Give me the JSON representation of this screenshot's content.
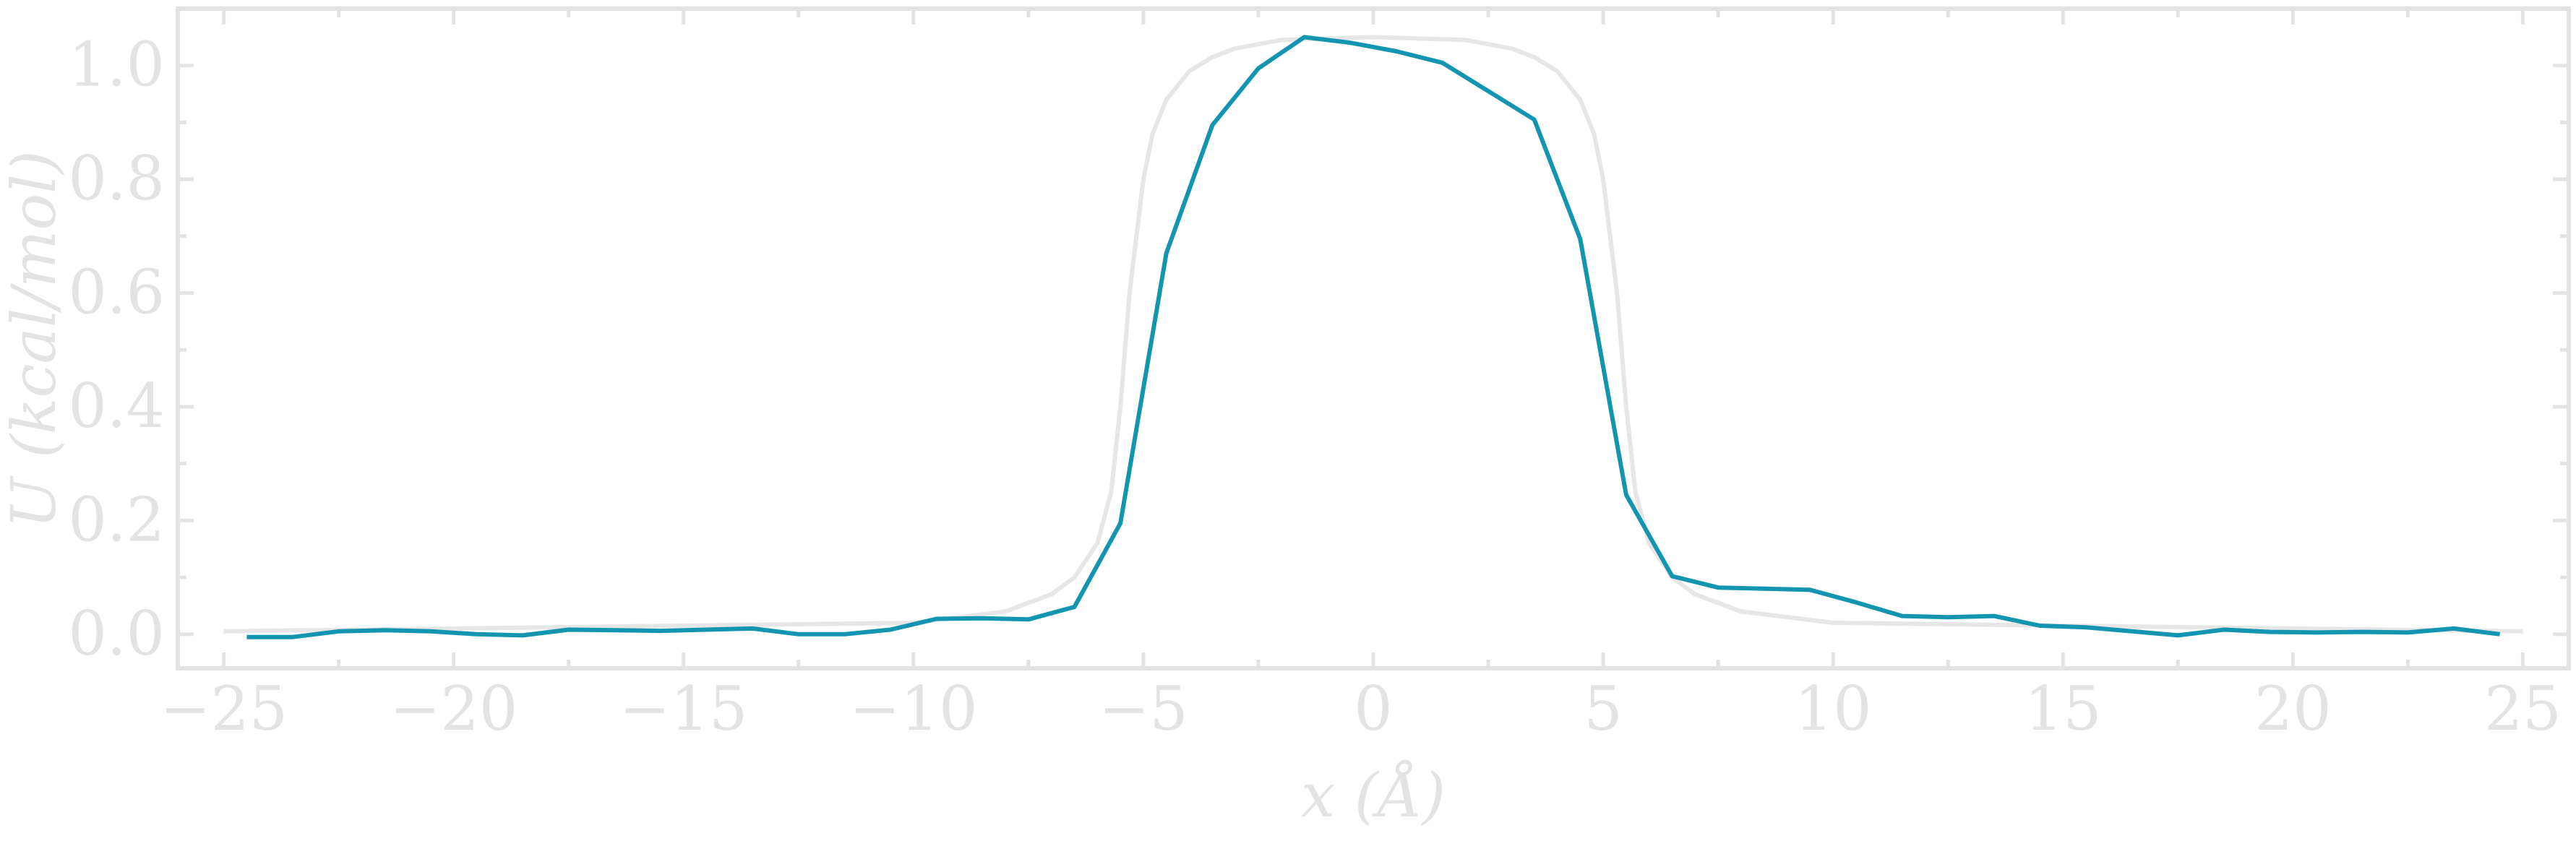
{
  "chart_data": {
    "type": "line",
    "title": "",
    "xlabel": "x (Å)",
    "ylabel": "U (kcal/mol)",
    "xlim": [
      -26,
      26
    ],
    "ylim": [
      -0.06,
      1.1
    ],
    "xticks": [
      -25,
      -20,
      -15,
      -10,
      -5,
      0,
      5,
      10,
      15,
      20,
      25
    ],
    "xtick_labels": [
      "−25",
      "−20",
      "−15",
      "−10",
      "−5",
      "0",
      "5",
      "10",
      "15",
      "20",
      "25"
    ],
    "yticks": [
      0.0,
      0.2,
      0.4,
      0.6,
      0.8,
      1.0
    ],
    "ytick_labels": [
      "0.0",
      "0.2",
      "0.4",
      "0.6",
      "0.8",
      "1.0"
    ],
    "grid": false,
    "legend": "none",
    "colors": {
      "data": "#1395b1",
      "reference": "#e6e6e6",
      "axes": "#e3e3e3"
    },
    "series": [
      {
        "role": "reference",
        "x": [
          -25,
          -10,
          -8,
          -7,
          -6.5,
          -6,
          -5.7,
          -5.5,
          -5.3,
          -5,
          -4.8,
          -4.5,
          -4,
          -3.5,
          -3,
          -2,
          0,
          2,
          3,
          3.5,
          4,
          4.5,
          4.8,
          5,
          5.3,
          5.5,
          5.7,
          6,
          6.5,
          7,
          8,
          10,
          25
        ],
        "y": [
          0.005,
          0.02,
          0.04,
          0.07,
          0.1,
          0.16,
          0.25,
          0.4,
          0.6,
          0.8,
          0.88,
          0.94,
          0.99,
          1.015,
          1.03,
          1.045,
          1.05,
          1.045,
          1.03,
          1.015,
          0.99,
          0.94,
          0.88,
          0.8,
          0.6,
          0.4,
          0.25,
          0.16,
          0.1,
          0.07,
          0.04,
          0.02,
          0.005
        ]
      },
      {
        "role": "data",
        "x": [
          -24.5,
          -23.5,
          -22.5,
          -21.5,
          -20.5,
          -19.5,
          -18.5,
          -17.5,
          -16.5,
          -15.5,
          -14.5,
          -13.5,
          -12.5,
          -11.5,
          -10.5,
          -9.5,
          -8.5,
          -7.5,
          -6.5,
          -5.5,
          -4.5,
          -3.5,
          -2.5,
          -1.5,
          -0.5,
          0.5,
          1.5,
          2.5,
          3.5,
          4.5,
          5.5,
          6.5,
          7.5,
          8.5,
          9.5,
          10.5,
          11.5,
          12.5,
          13.5,
          14.5,
          15.5,
          16.5,
          17.5,
          18.5,
          19.5,
          20.5,
          21.5,
          22.5,
          23.5,
          24.5
        ],
        "y": [
          -0.005,
          -0.005,
          0.005,
          0.007,
          0.005,
          0.0,
          -0.002,
          0.008,
          0.007,
          0.006,
          0.008,
          0.01,
          0.0,
          0.0,
          0.008,
          0.027,
          0.028,
          0.026,
          0.048,
          0.195,
          0.67,
          0.895,
          0.995,
          1.05,
          1.04,
          1.025,
          1.005,
          0.955,
          0.905,
          0.695,
          0.245,
          0.102,
          0.082,
          0.08,
          0.078,
          0.056,
          0.032,
          0.03,
          0.032,
          0.015,
          0.012,
          0.005,
          -0.002,
          0.008,
          0.004,
          0.003,
          0.004,
          0.003,
          0.01,
          0.0
        ]
      }
    ]
  }
}
